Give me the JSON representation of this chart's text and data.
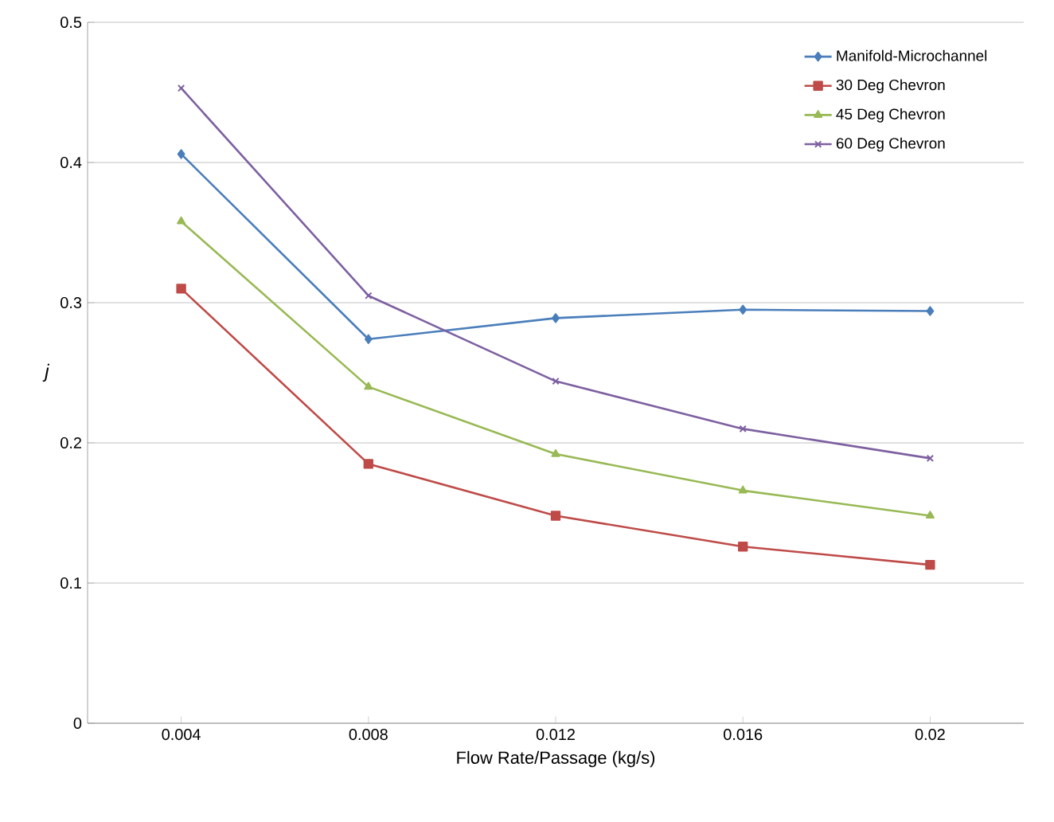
{
  "chart_data": {
    "type": "line",
    "xlabel": "Flow Rate/Passage (kg/s)",
    "ylabel": "j",
    "categories": [
      "0.004",
      "0.008",
      "0.012",
      "0.016",
      "0.02"
    ],
    "series": [
      {
        "name": "Manifold-Microchannel",
        "color": "#4a7ebb",
        "marker": "diamond",
        "values": [
          0.406,
          0.274,
          0.289,
          0.295,
          0.294
        ]
      },
      {
        "name": "30 Deg Chevron",
        "color": "#be4b48",
        "marker": "square",
        "values": [
          0.31,
          0.185,
          0.148,
          0.126,
          0.113
        ]
      },
      {
        "name": "45 Deg Chevron",
        "color": "#98b954",
        "marker": "triangle",
        "values": [
          0.358,
          0.24,
          0.192,
          0.166,
          0.148
        ]
      },
      {
        "name": "60 Deg Chevron",
        "color": "#7d60a0",
        "marker": "cross",
        "values": [
          0.453,
          0.305,
          0.244,
          0.21,
          0.189
        ]
      }
    ],
    "ylim": [
      0,
      0.5
    ],
    "yticks": [
      0,
      0.1,
      0.2,
      0.3,
      0.4,
      0.5
    ],
    "grid": "y",
    "legend": "top right"
  }
}
